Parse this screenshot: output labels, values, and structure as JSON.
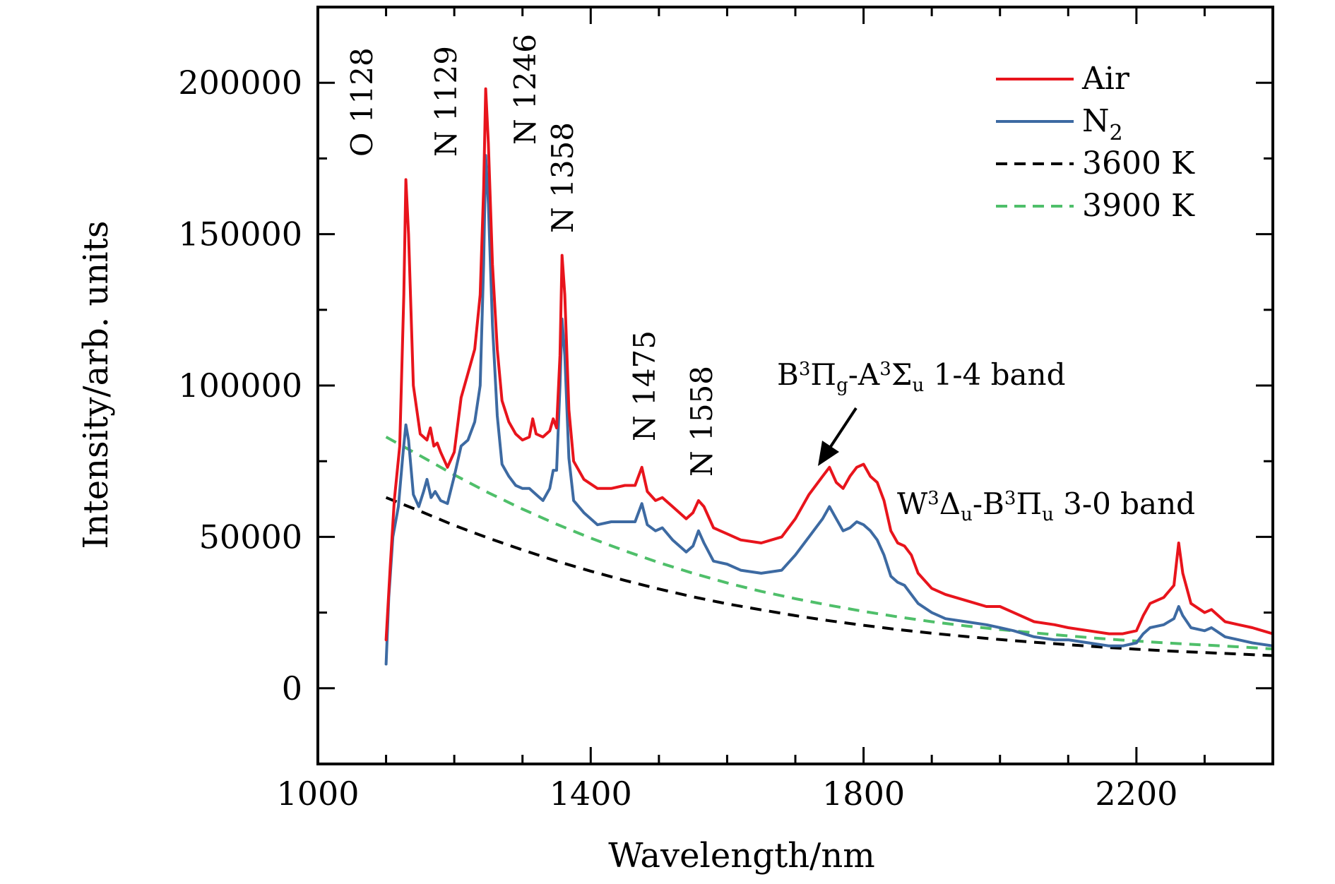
{
  "chart_data": {
    "type": "line",
    "xlabel": "Wavelength/nm",
    "ylabel": "Intensity/arb. units",
    "xlim": [
      1000,
      2400
    ],
    "ylim": [
      -25000,
      225000
    ],
    "xticks": [
      1000,
      1400,
      1800,
      2200
    ],
    "yticks": [
      0,
      50000,
      100000,
      150000,
      200000
    ],
    "xtick_labels": [
      "1000",
      "1400",
      "1800",
      "2200"
    ],
    "ytick_labels": [
      "0",
      "50000",
      "100000",
      "150000",
      "200000"
    ],
    "x_minor_step": 100,
    "y_minor_step": 25000,
    "legend_position": "top-right",
    "series": [
      {
        "name": "Air",
        "color": "#e8141c",
        "style": "solid",
        "points": [
          [
            1100,
            16000
          ],
          [
            1106,
            40000
          ],
          [
            1112,
            62000
          ],
          [
            1120,
            80000
          ],
          [
            1126,
            130000
          ],
          [
            1129,
            168000
          ],
          [
            1133,
            150000
          ],
          [
            1140,
            100000
          ],
          [
            1150,
            84000
          ],
          [
            1160,
            82000
          ],
          [
            1165,
            86000
          ],
          [
            1170,
            80000
          ],
          [
            1175,
            81000
          ],
          [
            1180,
            78000
          ],
          [
            1190,
            73000
          ],
          [
            1200,
            78000
          ],
          [
            1210,
            96000
          ],
          [
            1220,
            104000
          ],
          [
            1230,
            112000
          ],
          [
            1238,
            130000
          ],
          [
            1243,
            165000
          ],
          [
            1246,
            198000
          ],
          [
            1250,
            180000
          ],
          [
            1256,
            140000
          ],
          [
            1263,
            112000
          ],
          [
            1270,
            95000
          ],
          [
            1280,
            88000
          ],
          [
            1290,
            84000
          ],
          [
            1300,
            82000
          ],
          [
            1310,
            83000
          ],
          [
            1315,
            89000
          ],
          [
            1320,
            84000
          ],
          [
            1330,
            83000
          ],
          [
            1340,
            85000
          ],
          [
            1345,
            89000
          ],
          [
            1350,
            86000
          ],
          [
            1355,
            110000
          ],
          [
            1358,
            143000
          ],
          [
            1362,
            130000
          ],
          [
            1368,
            92000
          ],
          [
            1375,
            75000
          ],
          [
            1390,
            69000
          ],
          [
            1410,
            66000
          ],
          [
            1430,
            66000
          ],
          [
            1450,
            67000
          ],
          [
            1465,
            67000
          ],
          [
            1475,
            73000
          ],
          [
            1483,
            65000
          ],
          [
            1495,
            62000
          ],
          [
            1505,
            63000
          ],
          [
            1520,
            60000
          ],
          [
            1540,
            56000
          ],
          [
            1550,
            58000
          ],
          [
            1558,
            62000
          ],
          [
            1566,
            60000
          ],
          [
            1580,
            53000
          ],
          [
            1600,
            51000
          ],
          [
            1620,
            49000
          ],
          [
            1650,
            48000
          ],
          [
            1680,
            50000
          ],
          [
            1700,
            56000
          ],
          [
            1720,
            64000
          ],
          [
            1740,
            70000
          ],
          [
            1750,
            73000
          ],
          [
            1760,
            68000
          ],
          [
            1770,
            66000
          ],
          [
            1780,
            70000
          ],
          [
            1790,
            73000
          ],
          [
            1800,
            74000
          ],
          [
            1810,
            70000
          ],
          [
            1820,
            68000
          ],
          [
            1830,
            62000
          ],
          [
            1840,
            52000
          ],
          [
            1850,
            48000
          ],
          [
            1860,
            47000
          ],
          [
            1870,
            44000
          ],
          [
            1880,
            38000
          ],
          [
            1900,
            33000
          ],
          [
            1920,
            31000
          ],
          [
            1950,
            29000
          ],
          [
            1980,
            27000
          ],
          [
            2000,
            27000
          ],
          [
            2020,
            25000
          ],
          [
            2050,
            22000
          ],
          [
            2080,
            21000
          ],
          [
            2100,
            20000
          ],
          [
            2130,
            19000
          ],
          [
            2160,
            18000
          ],
          [
            2180,
            18000
          ],
          [
            2200,
            19000
          ],
          [
            2210,
            24000
          ],
          [
            2220,
            28000
          ],
          [
            2240,
            30000
          ],
          [
            2255,
            34000
          ],
          [
            2262,
            48000
          ],
          [
            2268,
            38000
          ],
          [
            2280,
            28000
          ],
          [
            2300,
            25000
          ],
          [
            2310,
            26000
          ],
          [
            2330,
            22000
          ],
          [
            2350,
            21000
          ],
          [
            2370,
            20000
          ],
          [
            2400,
            18000
          ]
        ]
      },
      {
        "name": "N₂",
        "color": "#3d6aa2",
        "style": "solid",
        "points": [
          [
            1100,
            8000
          ],
          [
            1104,
            30000
          ],
          [
            1110,
            50000
          ],
          [
            1118,
            60000
          ],
          [
            1125,
            78000
          ],
          [
            1129,
            87000
          ],
          [
            1133,
            82000
          ],
          [
            1140,
            64000
          ],
          [
            1148,
            60000
          ],
          [
            1155,
            65000
          ],
          [
            1160,
            69000
          ],
          [
            1166,
            63000
          ],
          [
            1172,
            65000
          ],
          [
            1180,
            62000
          ],
          [
            1190,
            61000
          ],
          [
            1200,
            70000
          ],
          [
            1210,
            80000
          ],
          [
            1220,
            82000
          ],
          [
            1230,
            88000
          ],
          [
            1238,
            100000
          ],
          [
            1243,
            140000
          ],
          [
            1246,
            176000
          ],
          [
            1250,
            160000
          ],
          [
            1256,
            120000
          ],
          [
            1263,
            90000
          ],
          [
            1270,
            74000
          ],
          [
            1280,
            70000
          ],
          [
            1290,
            67000
          ],
          [
            1300,
            66000
          ],
          [
            1310,
            66000
          ],
          [
            1320,
            64000
          ],
          [
            1330,
            62000
          ],
          [
            1340,
            66000
          ],
          [
            1345,
            72000
          ],
          [
            1350,
            72000
          ],
          [
            1355,
            100000
          ],
          [
            1358,
            122000
          ],
          [
            1362,
            110000
          ],
          [
            1368,
            76000
          ],
          [
            1375,
            62000
          ],
          [
            1390,
            58000
          ],
          [
            1410,
            54000
          ],
          [
            1430,
            55000
          ],
          [
            1450,
            55000
          ],
          [
            1465,
            55000
          ],
          [
            1475,
            61000
          ],
          [
            1483,
            54000
          ],
          [
            1495,
            52000
          ],
          [
            1505,
            53000
          ],
          [
            1520,
            49000
          ],
          [
            1540,
            45000
          ],
          [
            1550,
            47000
          ],
          [
            1558,
            52000
          ],
          [
            1566,
            48000
          ],
          [
            1580,
            42000
          ],
          [
            1600,
            41000
          ],
          [
            1620,
            39000
          ],
          [
            1650,
            38000
          ],
          [
            1680,
            39000
          ],
          [
            1700,
            44000
          ],
          [
            1720,
            50000
          ],
          [
            1740,
            56000
          ],
          [
            1750,
            60000
          ],
          [
            1760,
            56000
          ],
          [
            1770,
            52000
          ],
          [
            1780,
            53000
          ],
          [
            1790,
            55000
          ],
          [
            1800,
            54000
          ],
          [
            1810,
            52000
          ],
          [
            1820,
            49000
          ],
          [
            1830,
            44000
          ],
          [
            1840,
            37000
          ],
          [
            1850,
            35000
          ],
          [
            1860,
            34000
          ],
          [
            1870,
            31000
          ],
          [
            1880,
            28000
          ],
          [
            1900,
            25000
          ],
          [
            1920,
            23000
          ],
          [
            1950,
            22000
          ],
          [
            1980,
            21000
          ],
          [
            2000,
            20000
          ],
          [
            2020,
            19000
          ],
          [
            2050,
            17000
          ],
          [
            2080,
            16000
          ],
          [
            2100,
            16000
          ],
          [
            2130,
            15000
          ],
          [
            2160,
            14000
          ],
          [
            2180,
            14000
          ],
          [
            2200,
            15000
          ],
          [
            2210,
            18000
          ],
          [
            2220,
            20000
          ],
          [
            2240,
            21000
          ],
          [
            2255,
            23000
          ],
          [
            2262,
            27000
          ],
          [
            2268,
            24000
          ],
          [
            2280,
            20000
          ],
          [
            2300,
            19000
          ],
          [
            2310,
            20000
          ],
          [
            2330,
            17000
          ],
          [
            2350,
            16000
          ],
          [
            2370,
            15000
          ],
          [
            2400,
            14000
          ]
        ]
      },
      {
        "name": "3600 K",
        "color": "#000000",
        "style": "dashed",
        "points": [
          [
            1100,
            63000
          ],
          [
            1150,
            58500
          ],
          [
            1200,
            53800
          ],
          [
            1250,
            49600
          ],
          [
            1300,
            45700
          ],
          [
            1350,
            42000
          ],
          [
            1400,
            38700
          ],
          [
            1450,
            35600
          ],
          [
            1500,
            32800
          ],
          [
            1550,
            30200
          ],
          [
            1600,
            27900
          ],
          [
            1650,
            25900
          ],
          [
            1700,
            24000
          ],
          [
            1750,
            22300
          ],
          [
            1800,
            20800
          ],
          [
            1850,
            19400
          ],
          [
            1900,
            18200
          ],
          [
            1950,
            17100
          ],
          [
            2000,
            16100
          ],
          [
            2050,
            15200
          ],
          [
            2100,
            14400
          ],
          [
            2150,
            13600
          ],
          [
            2200,
            12900
          ],
          [
            2250,
            12300
          ],
          [
            2300,
            11800
          ],
          [
            2350,
            11300
          ],
          [
            2400,
            10800
          ]
        ]
      },
      {
        "name": "3900 K",
        "color": "#4fbf6a",
        "style": "dashed",
        "points": [
          [
            1100,
            83000
          ],
          [
            1150,
            76800
          ],
          [
            1200,
            70500
          ],
          [
            1250,
            64600
          ],
          [
            1300,
            59200
          ],
          [
            1350,
            54200
          ],
          [
            1400,
            49600
          ],
          [
            1450,
            45400
          ],
          [
            1500,
            41500
          ],
          [
            1550,
            38000
          ],
          [
            1600,
            34800
          ],
          [
            1650,
            32000
          ],
          [
            1700,
            29600
          ],
          [
            1750,
            27400
          ],
          [
            1800,
            25400
          ],
          [
            1850,
            23600
          ],
          [
            1900,
            22000
          ],
          [
            1950,
            20600
          ],
          [
            2000,
            19400
          ],
          [
            2050,
            18300
          ],
          [
            2100,
            17300
          ],
          [
            2150,
            16400
          ],
          [
            2200,
            15600
          ],
          [
            2250,
            14900
          ],
          [
            2300,
            14300
          ],
          [
            2350,
            13700
          ],
          [
            2400,
            13000
          ]
        ]
      }
    ],
    "line_labels": [
      {
        "text": "O 1128",
        "x": 1128
      },
      {
        "text": "N 1129",
        "x": 1129
      },
      {
        "text": "N 1246",
        "x": 1246
      },
      {
        "text": "N 1358",
        "x": 1358
      },
      {
        "text": "N 1475",
        "x": 1475
      },
      {
        "text": "N 1558",
        "x": 1558
      }
    ],
    "band_annotations": {
      "b_band": {
        "b": "B",
        "b_sup": "3",
        "pi": "Π",
        "pi_sub": "g",
        "dash": "-",
        "a": "A",
        "a_sup": "3",
        "sigma": "Σ",
        "sigma_sub": "u",
        "rest": " 1-4 band",
        "arrow_target": [
          1750,
          73000
        ]
      },
      "w_band": {
        "w": "W",
        "w_sup": "3",
        "delta": "Δ",
        "delta_sub": "u",
        "dash": "-",
        "b": "B",
        "b_sup": "3",
        "pi": "Π",
        "pi_sub": "u",
        "rest": " 3-0 band"
      }
    },
    "legend": {
      "air": "Air",
      "n2_main": "N",
      "n2_sub": "2",
      "k3600": "3600 K",
      "k3900": "3900 K"
    }
  }
}
